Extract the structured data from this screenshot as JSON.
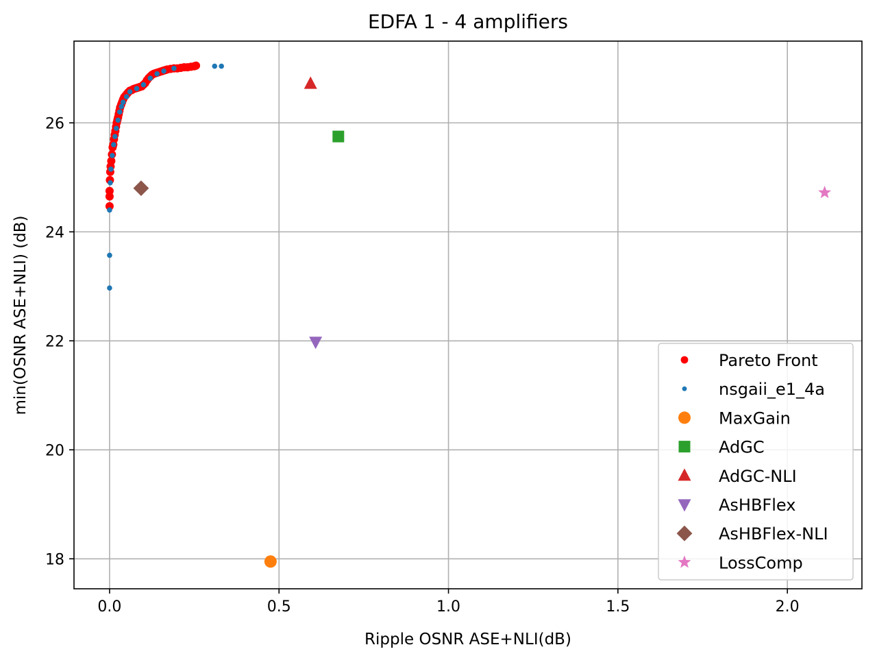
{
  "chart_data": {
    "type": "scatter",
    "title": "EDFA 1 - 4 amplifiers",
    "xlabel": "Ripple OSNR ASE+NLI(dB)",
    "ylabel": "min(OSNR ASE+NLI) (dB)",
    "xlim": [
      -0.105,
      2.22
    ],
    "ylim": [
      17.45,
      27.5
    ],
    "xticks": [
      0.0,
      0.5,
      1.0,
      1.5,
      2.0
    ],
    "xtick_labels": [
      "0.0",
      "0.5",
      "1.0",
      "1.5",
      "2.0"
    ],
    "yticks": [
      18,
      20,
      22,
      24,
      26
    ],
    "ytick_labels": [
      "18",
      "20",
      "22",
      "24",
      "26"
    ],
    "grid": true,
    "legend_position": "lower-right",
    "series": [
      {
        "name": "Pareto Front",
        "marker": "circle",
        "color": "#ff0000",
        "x": [
          0.0,
          0.0,
          0.0,
          0.001,
          0.002,
          0.003,
          0.005,
          0.007,
          0.009,
          0.011,
          0.013,
          0.015,
          0.017,
          0.019,
          0.021,
          0.023,
          0.025,
          0.027,
          0.029,
          0.031,
          0.034,
          0.037,
          0.04,
          0.043,
          0.047,
          0.051,
          0.055,
          0.06,
          0.065,
          0.07,
          0.075,
          0.08,
          0.085,
          0.09,
          0.095,
          0.1,
          0.105,
          0.11,
          0.115,
          0.12,
          0.125,
          0.13,
          0.135,
          0.14,
          0.145,
          0.15,
          0.155,
          0.16,
          0.165,
          0.17,
          0.18,
          0.19,
          0.2,
          0.21,
          0.22,
          0.23,
          0.24,
          0.25,
          0.255
        ],
        "y": [
          24.47,
          24.65,
          24.75,
          24.95,
          25.1,
          25.2,
          25.3,
          25.42,
          25.55,
          25.6,
          25.7,
          25.78,
          25.85,
          25.93,
          26.0,
          26.05,
          26.1,
          26.16,
          26.22,
          26.28,
          26.33,
          26.38,
          26.43,
          26.47,
          26.5,
          26.53,
          26.56,
          26.59,
          26.6,
          26.62,
          26.63,
          26.64,
          26.65,
          26.66,
          26.67,
          26.7,
          26.73,
          26.78,
          26.82,
          26.85,
          26.88,
          26.9,
          26.91,
          26.92,
          26.93,
          26.94,
          26.95,
          26.96,
          26.97,
          26.98,
          26.99,
          27.0,
          27.0,
          27.01,
          27.02,
          27.02,
          27.03,
          27.04,
          27.05
        ]
      },
      {
        "name": "nsgaii_e1_4a",
        "marker": "circle",
        "color": "#1f77b4",
        "x": [
          0.0,
          0.0,
          0.0,
          0.002,
          0.004,
          0.008,
          0.012,
          0.016,
          0.02,
          0.025,
          0.03,
          0.035,
          0.04,
          0.05,
          0.06,
          0.08,
          0.1,
          0.12,
          0.14,
          0.16,
          0.19,
          0.31,
          0.33
        ],
        "y": [
          22.97,
          23.57,
          24.4,
          24.9,
          25.15,
          25.4,
          25.6,
          25.75,
          25.9,
          26.05,
          26.2,
          26.3,
          26.38,
          26.48,
          26.57,
          26.63,
          26.7,
          26.82,
          26.9,
          26.95,
          27.0,
          27.04,
          27.04
        ]
      },
      {
        "name": "MaxGain",
        "marker": "circle",
        "color": "#ff7f0e",
        "x": [
          0.475
        ],
        "y": [
          17.95
        ]
      },
      {
        "name": "AdGC",
        "marker": "square",
        "color": "#2ca02c",
        "x": [
          0.675
        ],
        "y": [
          25.75
        ]
      },
      {
        "name": "AdGC-NLI",
        "marker": "triangle-up",
        "color": "#d62728",
        "x": [
          0.593
        ],
        "y": [
          26.72
        ]
      },
      {
        "name": "AsHBFlex",
        "marker": "triangle-down",
        "color": "#9467bd",
        "x": [
          0.608
        ],
        "y": [
          21.98
        ]
      },
      {
        "name": "AsHBFlex-NLI",
        "marker": "diamond",
        "color": "#8c564b",
        "x": [
          0.093
        ],
        "y": [
          24.8
        ]
      },
      {
        "name": "LossComp",
        "marker": "star",
        "color": "#e377c2",
        "x": [
          2.11
        ],
        "y": [
          24.72
        ]
      }
    ]
  }
}
